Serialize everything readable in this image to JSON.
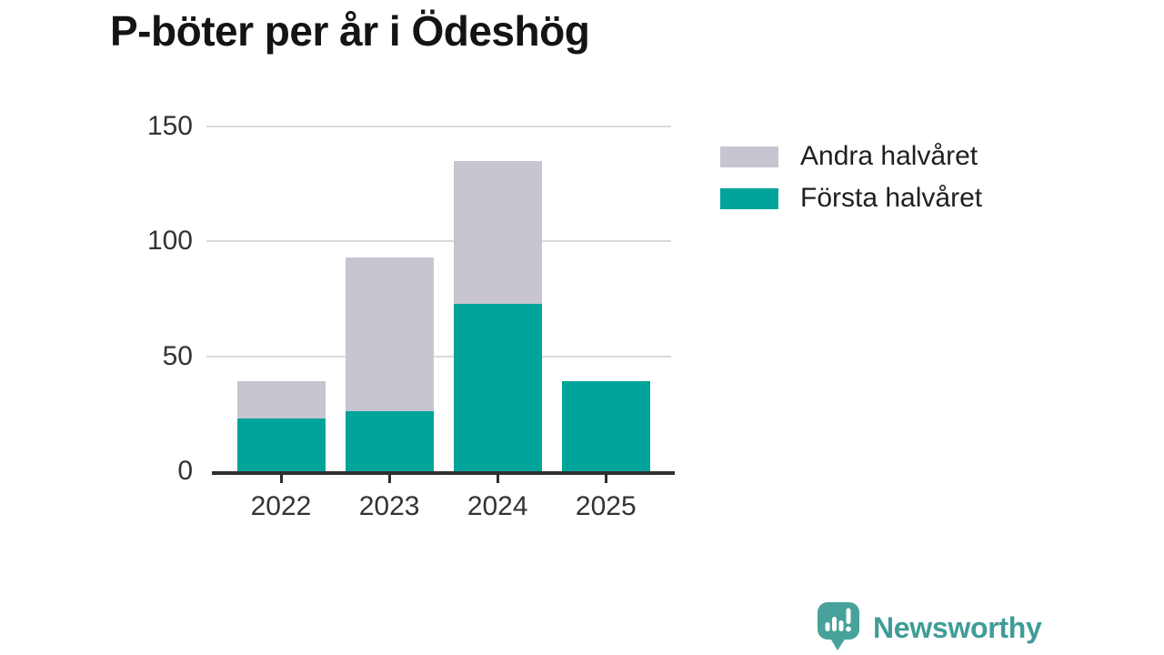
{
  "title": "P-böter per år i Ödeshög",
  "chart_data": {
    "type": "bar",
    "stacked": true,
    "title": "P-böter per år i Ödeshög",
    "categories": [
      "2022",
      "2023",
      "2024",
      "2025"
    ],
    "series": [
      {
        "name": "Första halvåret",
        "color": "#00a49a",
        "values": [
          23,
          26,
          73,
          39
        ]
      },
      {
        "name": "Andra halvåret",
        "color": "#c7c5d0",
        "values": [
          16,
          67,
          62,
          0
        ]
      }
    ],
    "xlabel": "",
    "ylabel": "",
    "ylim": [
      0,
      150
    ],
    "yticks": [
      0,
      50,
      100,
      150
    ],
    "grid": "horizontal-only",
    "legend_position": "right-top"
  },
  "legend": {
    "items": [
      {
        "label": "Andra halvåret",
        "color": "#c7c5d0"
      },
      {
        "label": "Första halvåret",
        "color": "#00a49a"
      }
    ]
  },
  "branding": {
    "wordmark": "Newsworthy",
    "wordmark_color": "#3f9d96",
    "icon": "newsworthy-speech-bubble-bar-chart-icon",
    "icon_color": "#47a29b"
  },
  "colors": {
    "first_half_bar": "#00a49a",
    "second_half_bar": "#c7c5d0",
    "gridline": "#dadada",
    "axis_line": "#2f2f2f",
    "tick_label": "#333333",
    "title_text": "#141414"
  }
}
